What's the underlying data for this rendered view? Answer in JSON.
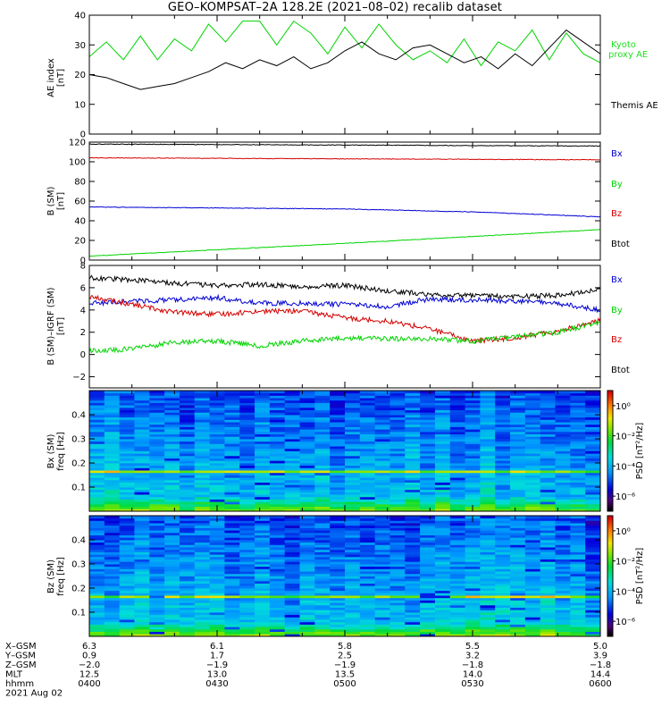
{
  "title": "GEO–KOMPSAT–2A 128.2E (2021–08–02) recalib dataset",
  "colors": {
    "black": "#000000",
    "red": "#d40000",
    "green": "#00d400",
    "blue": "#0000d4",
    "kyoto": "#22dd22"
  },
  "chart_data": [
    {
      "type": "line",
      "panel": "ae",
      "ylabel": "AE index [nT]",
      "ylim": [
        0,
        40
      ],
      "yticks": [
        0,
        10,
        20,
        30,
        40
      ],
      "legend": [
        {
          "label_lines": [
            "Kyoto",
            "proxy AE"
          ],
          "color": "green"
        },
        {
          "label_lines": [
            "Themis AE"
          ],
          "color": "black"
        }
      ],
      "series": [
        {
          "name": "Kyoto proxy AE",
          "color": "green",
          "x": [
            0,
            4,
            8,
            12,
            16,
            20,
            24,
            28,
            32,
            36,
            40,
            44,
            48,
            52,
            56,
            60,
            64,
            68,
            72,
            76,
            80,
            84,
            88,
            92,
            96,
            100,
            104,
            108,
            112,
            116,
            120
          ],
          "values": [
            26,
            31,
            25,
            33,
            25,
            32,
            28,
            37,
            31,
            38,
            38,
            30,
            38,
            34,
            27,
            36,
            29,
            37,
            30,
            25,
            28,
            24,
            32,
            23,
            31,
            28,
            35,
            25,
            34,
            27,
            24
          ]
        },
        {
          "name": "Themis AE",
          "color": "black",
          "x": [
            0,
            4,
            8,
            12,
            16,
            20,
            24,
            28,
            32,
            36,
            40,
            44,
            48,
            52,
            56,
            60,
            64,
            68,
            72,
            76,
            80,
            84,
            88,
            92,
            96,
            100,
            104,
            108,
            112,
            116,
            120
          ],
          "values": [
            20,
            19,
            17,
            15,
            16,
            17,
            19,
            21,
            24,
            22,
            25,
            23,
            26,
            22,
            24,
            28,
            31,
            27,
            25,
            29,
            30,
            27,
            24,
            26,
            22,
            27,
            23,
            29,
            35,
            31,
            27
          ]
        }
      ]
    },
    {
      "type": "line",
      "panel": "b",
      "ylabel_lines": [
        "B (SM)",
        "[nT]"
      ],
      "ylim": [
        0,
        120
      ],
      "yticks": [
        0,
        20,
        40,
        60,
        80,
        100,
        120
      ],
      "legend": [
        {
          "label": "Bx",
          "color": "blue"
        },
        {
          "label": "By",
          "color": "green"
        },
        {
          "label": "Bz",
          "color": "red"
        },
        {
          "label": "Btot",
          "color": "black"
        }
      ],
      "series": [
        {
          "name": "Btot",
          "color": "black",
          "x": [
            0,
            60,
            120
          ],
          "values": [
            118,
            117,
            116
          ]
        },
        {
          "name": "Bz",
          "color": "red",
          "x": [
            0,
            60,
            120
          ],
          "values": [
            104,
            103,
            102
          ]
        },
        {
          "name": "Bx",
          "color": "blue",
          "x": [
            0,
            60,
            90,
            120
          ],
          "values": [
            54,
            52,
            49,
            44
          ]
        },
        {
          "name": "By",
          "color": "green",
          "x": [
            0,
            60,
            120
          ],
          "values": [
            4,
            17,
            31
          ]
        }
      ]
    },
    {
      "type": "line",
      "panel": "db",
      "ylabel_lines": [
        "B (SM)–IGRF (SM)",
        "[nT]"
      ],
      "ylim": [
        -3,
        8
      ],
      "yticks": [
        -2,
        0,
        2,
        4,
        6,
        8
      ],
      "legend": [
        {
          "label": "Bx",
          "color": "blue"
        },
        {
          "label": "By",
          "color": "green"
        },
        {
          "label": "Bz",
          "color": "red"
        },
        {
          "label": "Btot",
          "color": "black"
        }
      ],
      "series": [
        {
          "name": "Btot",
          "color": "black",
          "x": [
            0,
            10,
            20,
            30,
            40,
            50,
            60,
            70,
            80,
            90,
            100,
            110,
            120
          ],
          "values": [
            6.9,
            6.7,
            6.4,
            6.2,
            6.3,
            6.1,
            6.2,
            5.7,
            5.4,
            5.3,
            5.2,
            5.3,
            5.8
          ]
        },
        {
          "name": "Bx",
          "color": "blue",
          "x": [
            0,
            10,
            20,
            30,
            40,
            50,
            60,
            70,
            80,
            90,
            100,
            110,
            120
          ],
          "values": [
            4.6,
            4.8,
            4.9,
            5.1,
            4.6,
            4.6,
            4.5,
            4.3,
            5.0,
            4.9,
            4.8,
            4.6,
            4.0
          ]
        },
        {
          "name": "Bz",
          "color": "red",
          "x": [
            0,
            10,
            20,
            30,
            40,
            50,
            60,
            70,
            80,
            90,
            100,
            110,
            120
          ],
          "values": [
            5.2,
            4.5,
            3.8,
            3.6,
            3.9,
            3.9,
            3.3,
            3.0,
            2.3,
            1.2,
            1.5,
            2.1,
            3.1
          ]
        },
        {
          "name": "By",
          "color": "green",
          "x": [
            0,
            10,
            20,
            30,
            40,
            50,
            60,
            70,
            80,
            90,
            100,
            110,
            120
          ],
          "values": [
            0.3,
            0.5,
            1.1,
            1.2,
            0.8,
            1.2,
            1.5,
            1.4,
            1.4,
            1.2,
            1.6,
            2.0,
            2.9
          ]
        }
      ]
    },
    {
      "type": "heatmap",
      "panel": "bx",
      "ylabel_lines": [
        "Bx (SM)",
        "freq [Hz]"
      ],
      "ylim": [
        0,
        0.5
      ],
      "yticks": [
        0.1,
        0.2,
        0.3,
        0.4
      ],
      "colorbar_label": "PSD [nT²/Hz]",
      "colorbar_ticks": [
        "10⁰",
        "10⁻²",
        "10⁻⁴",
        "10⁻⁶"
      ],
      "colorbar_log_range": [
        -7,
        1
      ],
      "columns": 34,
      "rows": 50
    },
    {
      "type": "heatmap",
      "panel": "bz",
      "ylabel_lines": [
        "Bz (SM)",
        "freq [Hz]"
      ],
      "ylim": [
        0,
        0.5
      ],
      "yticks": [
        0.1,
        0.2,
        0.3,
        0.4
      ],
      "colorbar_label": "PSD [nT²/Hz]",
      "colorbar_ticks": [
        "10⁰",
        "10⁻²",
        "10⁻⁴",
        "10⁻⁶"
      ],
      "colorbar_log_range": [
        -7,
        1
      ],
      "columns": 34,
      "rows": 50
    }
  ],
  "time_axis": {
    "unit": "minutes after 0400 UT",
    "range": [
      0,
      120
    ],
    "tick_minutes": [
      0,
      30,
      60,
      90,
      120
    ],
    "minor_every": 10
  },
  "ephemeris": {
    "rows": [
      {
        "label": "X–GSM",
        "values": [
          "6.3",
          "6.1",
          "5.8",
          "5.5",
          "5.0"
        ]
      },
      {
        "label": "Y–GSM",
        "values": [
          "0.9",
          "1.7",
          "2.5",
          "3.2",
          "3.9"
        ]
      },
      {
        "label": "Z–GSM",
        "values": [
          "−2.0",
          "−1.9",
          "−1.9",
          "−1.8",
          "−1.8"
        ]
      },
      {
        "label": "MLT",
        "values": [
          "12.5",
          "13.0",
          "13.5",
          "14.0",
          "14.4"
        ]
      },
      {
        "label": "hhmm",
        "values": [
          "0400",
          "0430",
          "0500",
          "0530",
          "0600"
        ]
      }
    ],
    "date": "2021 Aug 02"
  }
}
